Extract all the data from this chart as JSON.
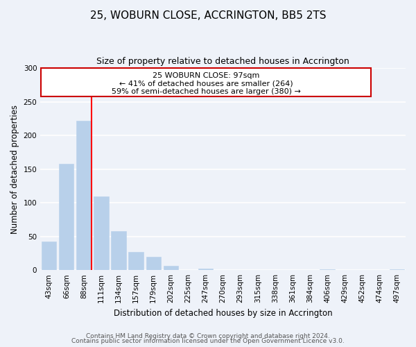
{
  "title": "25, WOBURN CLOSE, ACCRINGTON, BB5 2TS",
  "subtitle": "Size of property relative to detached houses in Accrington",
  "xlabel": "Distribution of detached houses by size in Accrington",
  "ylabel": "Number of detached properties",
  "bar_labels": [
    "43sqm",
    "66sqm",
    "88sqm",
    "111sqm",
    "134sqm",
    "157sqm",
    "179sqm",
    "202sqm",
    "225sqm",
    "247sqm",
    "270sqm",
    "293sqm",
    "315sqm",
    "338sqm",
    "361sqm",
    "384sqm",
    "406sqm",
    "429sqm",
    "452sqm",
    "474sqm",
    "497sqm"
  ],
  "bar_values": [
    42,
    158,
    222,
    109,
    58,
    27,
    20,
    6,
    0,
    2,
    0,
    0,
    0,
    0,
    0,
    0,
    1,
    0,
    0,
    0,
    1
  ],
  "bar_color": "#b8d0ea",
  "bar_edge_color": "#b8d0ea",
  "vline_x_idx": 2,
  "vline_color": "red",
  "ylim": [
    0,
    300
  ],
  "yticks": [
    0,
    50,
    100,
    150,
    200,
    250,
    300
  ],
  "annotation_title": "25 WOBURN CLOSE: 97sqm",
  "annotation_line1": "← 41% of detached houses are smaller (264)",
  "annotation_line2": "59% of semi-detached houses are larger (380) →",
  "annotation_box_color": "#ffffff",
  "annotation_box_edge": "#cc0000",
  "footer1": "Contains HM Land Registry data © Crown copyright and database right 2024.",
  "footer2": "Contains public sector information licensed under the Open Government Licence v3.0.",
  "bg_color": "#eef2f9",
  "plot_bg_color": "#eef2f9",
  "grid_color": "#ffffff",
  "title_fontsize": 11,
  "subtitle_fontsize": 9,
  "axis_label_fontsize": 8.5,
  "tick_fontsize": 7.5,
  "footer_fontsize": 6.5,
  "annotation_fontsize": 8
}
